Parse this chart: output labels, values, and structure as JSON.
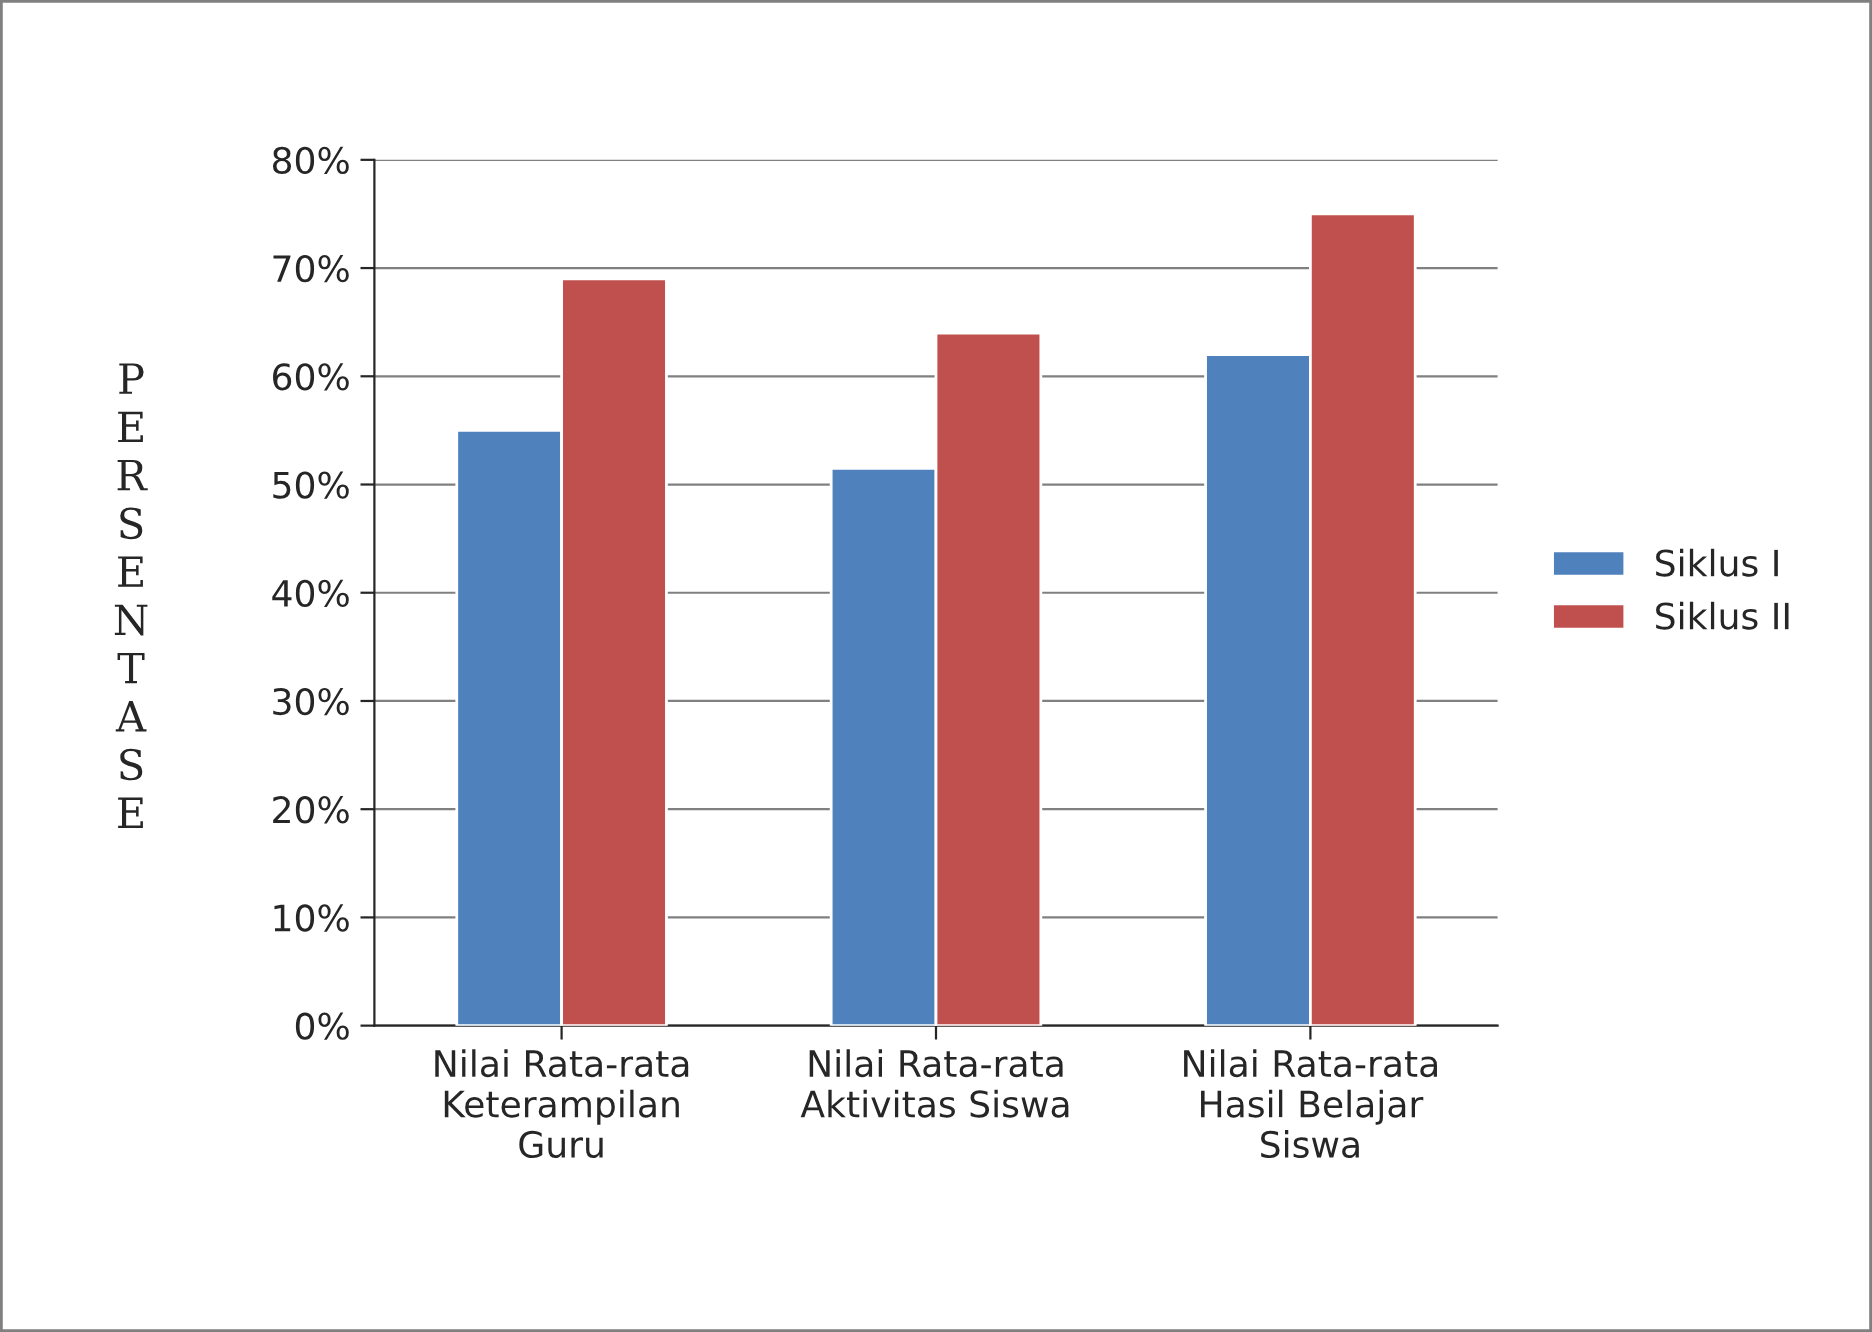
{
  "chart_data": {
    "type": "bar",
    "ylabel": "PERSENTASE",
    "categories": [
      "Nilai Rata-rata\nKeterampilan\nGuru",
      "Nilai Rata-rata\nAktivitas Siswa",
      "Nilai Rata-rata\nHasil Belajar\nSiswa"
    ],
    "series": [
      {
        "name": "Siklus I",
        "color": "#4f81bd",
        "values": [
          55,
          51.5,
          62
        ]
      },
      {
        "name": "Siklus II",
        "color": "#c0504d",
        "values": [
          69,
          64,
          75
        ]
      }
    ],
    "ylim": [
      0,
      80
    ],
    "yticks": [
      {
        "value": 0,
        "label": "0%"
      },
      {
        "value": 10,
        "label": "10%"
      },
      {
        "value": 20,
        "label": "20%"
      },
      {
        "value": 30,
        "label": "30%"
      },
      {
        "value": 40,
        "label": "40%"
      },
      {
        "value": 50,
        "label": "50%"
      },
      {
        "value": 60,
        "label": "60%"
      },
      {
        "value": 70,
        "label": "70%"
      },
      {
        "value": 80,
        "label": "80%"
      }
    ],
    "grid": "y",
    "legend": "right"
  }
}
